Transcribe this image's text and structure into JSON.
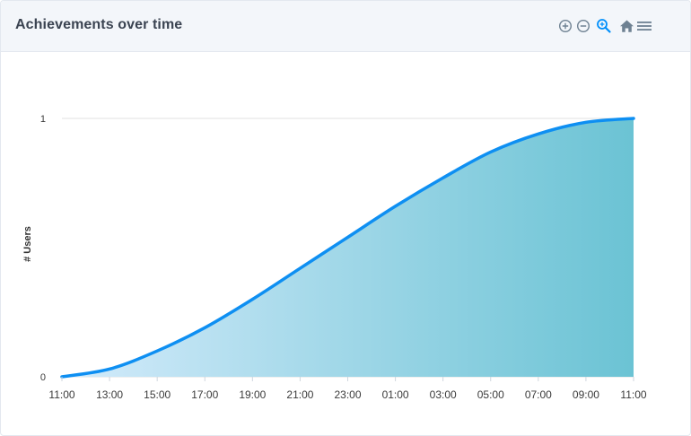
{
  "header": {
    "title": "Achievements over time"
  },
  "toolbar": {
    "icons": [
      "zoom-in-icon",
      "zoom-out-icon",
      "zoom-select-icon",
      "home-icon",
      "menu-icon"
    ],
    "active_color": "#008ffb",
    "icon_color": "#6e8192"
  },
  "chart_data": {
    "type": "area",
    "title": "Achievements over time",
    "xlabel": "",
    "ylabel": "# Users",
    "x_ticks": [
      "11:00",
      "13:00",
      "15:00",
      "17:00",
      "19:00",
      "21:00",
      "23:00",
      "01:00",
      "03:00",
      "05:00",
      "07:00",
      "09:00",
      "11:00"
    ],
    "y_ticks": [
      "0",
      "1"
    ],
    "ylim": [
      0,
      1
    ],
    "grid": true,
    "series": [
      {
        "color": "#0e8ff2",
        "fill_gradient": [
          "#d4ebfb",
          "#6bc3d4"
        ],
        "x": [
          "11:00",
          "13:00",
          "15:00",
          "17:00",
          "19:00",
          "21:00",
          "23:00",
          "01:00",
          "03:00",
          "05:00",
          "07:00",
          "09:00",
          "11:00"
        ],
        "values": [
          0.0,
          0.03,
          0.1,
          0.19,
          0.3,
          0.42,
          0.54,
          0.66,
          0.77,
          0.87,
          0.94,
          0.985,
          1.0
        ]
      }
    ]
  }
}
